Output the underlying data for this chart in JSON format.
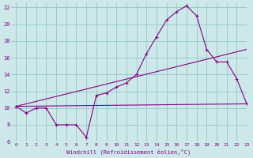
{
  "xlabel": "Windchill (Refroidissement éolien,°C)",
  "bg_color": "#cce8e8",
  "line_color": "#880088",
  "grid_color": "#99cccc",
  "line1_x": [
    0,
    1,
    2,
    3,
    4,
    5,
    6,
    7,
    8,
    9,
    10,
    11,
    12,
    13,
    14,
    15,
    16,
    17,
    18,
    19,
    20,
    21,
    22,
    23
  ],
  "line1_y": [
    10.2,
    9.4,
    10.0,
    10.0,
    8.0,
    8.0,
    8.0,
    6.5,
    11.5,
    11.8,
    12.5,
    13.0,
    14.0,
    16.5,
    18.5,
    20.5,
    21.5,
    22.2,
    21.0,
    17.0,
    15.5,
    15.5,
    13.5,
    10.5
  ],
  "line2_x": [
    0,
    23
  ],
  "line2_y": [
    10.2,
    17.0
  ],
  "line3_x": [
    0,
    23
  ],
  "line3_y": [
    10.2,
    10.5
  ],
  "xlim": [
    -0.5,
    23
  ],
  "ylim": [
    6,
    22.5
  ],
  "yticks": [
    6,
    8,
    10,
    12,
    14,
    16,
    18,
    20,
    22
  ],
  "xticks": [
    0,
    1,
    2,
    3,
    4,
    5,
    6,
    7,
    8,
    9,
    10,
    11,
    12,
    13,
    14,
    15,
    16,
    17,
    18,
    19,
    20,
    21,
    22,
    23
  ]
}
